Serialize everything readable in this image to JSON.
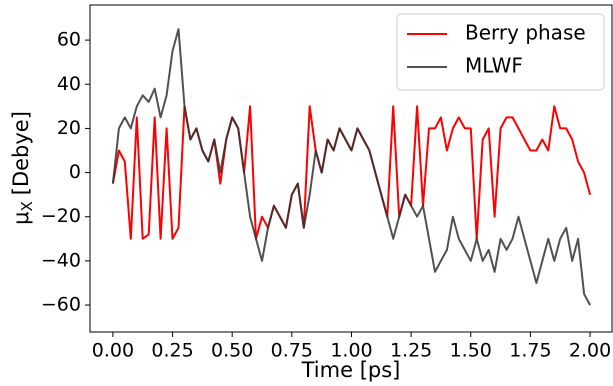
{
  "chart_data": {
    "type": "line",
    "xlabel": "Time [ps]",
    "ylabel": [
      "μ",
      "X",
      "[Debye]"
    ],
    "x": [
      0,
      0.025,
      0.05,
      0.075,
      0.1,
      0.125,
      0.15,
      0.175,
      0.2,
      0.225,
      0.25,
      0.275,
      0.3,
      0.325,
      0.35,
      0.375,
      0.4,
      0.425,
      0.45,
      0.475,
      0.5,
      0.525,
      0.55,
      0.575,
      0.6,
      0.625,
      0.65,
      0.675,
      0.7,
      0.725,
      0.75,
      0.775,
      0.8,
      0.825,
      0.85,
      0.875,
      0.9,
      0.925,
      0.95,
      0.975,
      1.0,
      1.025,
      1.05,
      1.075,
      1.1,
      1.125,
      1.15,
      1.175,
      1.2,
      1.225,
      1.25,
      1.275,
      1.3,
      1.325,
      1.35,
      1.375,
      1.4,
      1.425,
      1.45,
      1.475,
      1.5,
      1.525,
      1.55,
      1.575,
      1.6,
      1.625,
      1.65,
      1.675,
      1.7,
      1.725,
      1.75,
      1.775,
      1.8,
      1.825,
      1.85,
      1.875,
      1.9,
      1.925,
      1.95,
      1.975,
      2.0
    ],
    "series": [
      {
        "name": "Berry phase",
        "color": "#ff0000",
        "alpha": 1,
        "values": [
          -5,
          10,
          5,
          -30,
          25,
          -30,
          -28,
          25,
          -30,
          20,
          -30,
          -25,
          30,
          15,
          20,
          10,
          5,
          15,
          -5,
          15,
          25,
          20,
          0,
          30,
          -30,
          -20,
          -25,
          -15,
          -20,
          -25,
          -10,
          -5,
          -25,
          30,
          10,
          0,
          15,
          10,
          20,
          15,
          10,
          20,
          15,
          10,
          0,
          -10,
          -20,
          30,
          -20,
          -10,
          -15,
          30,
          -15,
          20,
          20,
          25,
          10,
          20,
          25,
          20,
          20,
          -30,
          15,
          20,
          -20,
          20,
          25,
          25,
          20,
          15,
          10,
          10,
          15,
          10,
          30,
          20,
          20,
          15,
          5,
          0,
          -10
        ]
      },
      {
        "name": "MLWF",
        "color": "#333333",
        "alpha": 0.85,
        "values": [
          -5,
          20,
          25,
          20,
          30,
          35,
          32,
          38,
          25,
          35,
          55,
          65,
          30,
          15,
          20,
          10,
          5,
          15,
          0,
          15,
          25,
          20,
          0,
          -20,
          -30,
          -40,
          -25,
          -15,
          -20,
          -25,
          -10,
          -5,
          -25,
          -10,
          10,
          0,
          15,
          10,
          20,
          15,
          10,
          20,
          15,
          10,
          0,
          -10,
          -20,
          -30,
          -20,
          -10,
          -15,
          -20,
          -15,
          -30,
          -45,
          -40,
          -35,
          -20,
          -30,
          -35,
          -40,
          -30,
          -40,
          -35,
          -45,
          -30,
          -35,
          -30,
          -20,
          -30,
          -40,
          -50,
          -40,
          -30,
          -40,
          -30,
          -25,
          -40,
          -30,
          -55,
          -60
        ]
      }
    ],
    "xlim": [
      -0.096,
      2.092
    ],
    "ylim": [
      -72.2,
      75.9
    ],
    "xticks": [
      {
        "value": 0,
        "label": "0.00"
      },
      {
        "value": 0.25,
        "label": "0.25"
      },
      {
        "value": 0.5,
        "label": "0.50"
      },
      {
        "value": 0.75,
        "label": "0.75"
      },
      {
        "value": 1,
        "label": "1.00"
      },
      {
        "value": 1.25,
        "label": "1.25"
      },
      {
        "value": 1.5,
        "label": "1.50"
      },
      {
        "value": 1.75,
        "label": "1.75"
      },
      {
        "value": 2,
        "label": "2.00"
      }
    ],
    "yticks": [
      {
        "value": -60,
        "label": "−60"
      },
      {
        "value": -40,
        "label": "−40"
      },
      {
        "value": -20,
        "label": "−20"
      },
      0,
      20,
      40,
      60
    ],
    "legend": "upper right"
  }
}
